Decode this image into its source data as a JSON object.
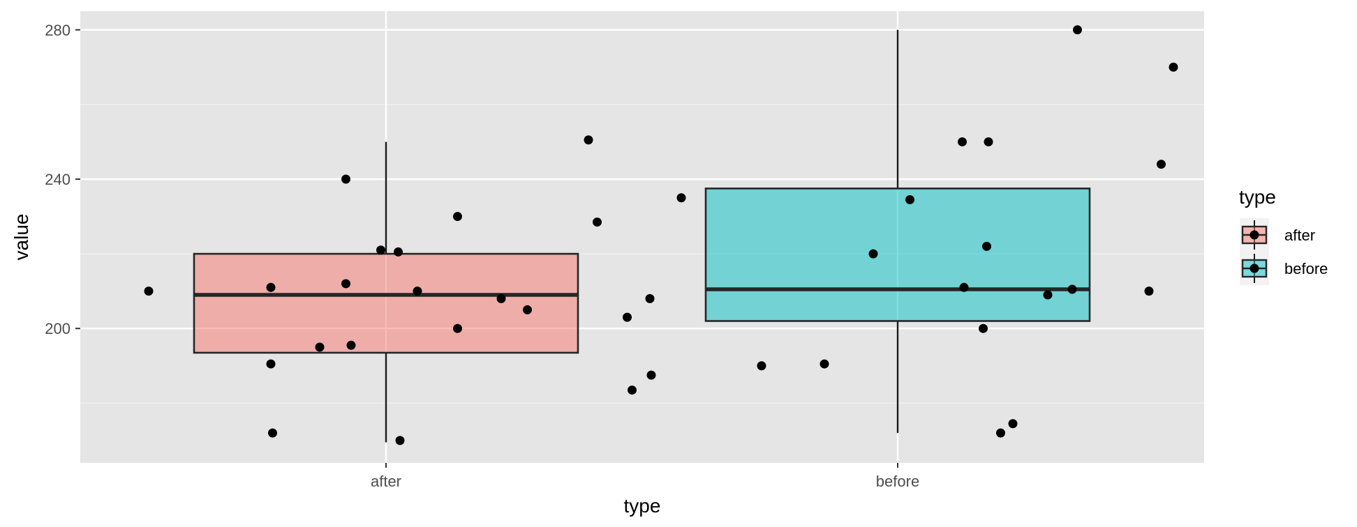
{
  "chart_data": {
    "type": "boxplot",
    "xlabel": "type",
    "ylabel": "value",
    "categories": [
      "after",
      "before"
    ],
    "ylim": [
      164,
      285
    ],
    "yticks": [
      200,
      240,
      280
    ],
    "grid": true,
    "legend": {
      "title": "type",
      "placement": "right",
      "entries": [
        {
          "label": "after",
          "color": "#F8766D"
        },
        {
          "label": "before",
          "color": "#00BFC4"
        }
      ]
    },
    "boxes": [
      {
        "category": "after",
        "color": "#F8766D",
        "min": 169.5,
        "q1": 193.5,
        "median": 209,
        "q3": 220,
        "max": 250
      },
      {
        "category": "before",
        "color": "#00BFC4",
        "min": 172,
        "q1": 202,
        "median": 210.5,
        "q3": 237.5,
        "max": 280
      }
    ],
    "points": [
      {
        "category": "after",
        "values": [
          210,
          190.5,
          172,
          211,
          195,
          240,
          212,
          195.5,
          221,
          220.5,
          170,
          210,
          230,
          200,
          208,
          205,
          250.5,
          228.5,
          183.5,
          187.5
        ]
      },
      {
        "category": "before",
        "values": [
          203,
          208,
          235,
          190,
          190.5,
          220,
          234.5,
          250,
          211,
          250,
          200,
          222,
          172,
          174.5,
          209,
          280,
          210.5,
          210,
          244,
          270
        ]
      }
    ],
    "point_offsets": [
      [
        -1.36,
        -0.66,
        -0.65,
        -0.66,
        -0.38,
        -0.23,
        -0.23,
        -0.2,
        -0.03,
        0.07,
        0.08,
        0.18,
        0.41,
        0.41,
        0.66,
        0.81,
        1.16,
        1.21,
        1.41,
        1.52
      ],
      [
        -1.55,
        -1.42,
        -1.24,
        -0.78,
        -0.42,
        -0.14,
        0.07,
        0.37,
        0.38,
        0.52,
        0.49,
        0.51,
        0.59,
        0.66,
        0.86,
        1.03,
        1.0,
        1.44,
        1.51,
        1.58
      ]
    ]
  }
}
